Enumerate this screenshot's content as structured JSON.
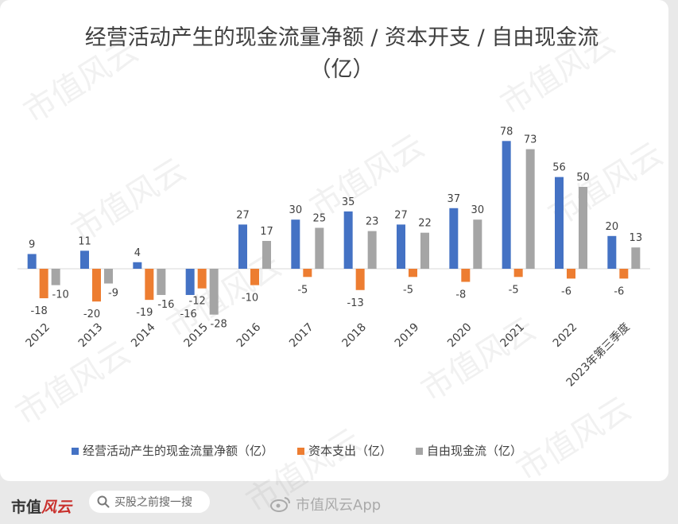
{
  "chart_data": {
    "type": "bar",
    "title": "经营活动产生的现金流量净额 / 资本开支 / 自由现金流（亿）",
    "categories": [
      "2012",
      "2013",
      "2014",
      "2015",
      "2016",
      "2017",
      "2018",
      "2019",
      "2020",
      "2021",
      "2022",
      "2023年第三季度"
    ],
    "series": [
      {
        "name": "经营活动产生的现金流量净额（亿）",
        "color": "#4472c4",
        "values": [
          9,
          11,
          4,
          -16,
          27,
          30,
          35,
          27,
          37,
          78,
          56,
          20
        ]
      },
      {
        "name": "资本支出（亿）",
        "color": "#ed7d31",
        "values": [
          -18,
          -20,
          -19,
          -12,
          -10,
          -5,
          -13,
          -5,
          -8,
          -5,
          -6,
          -6
        ]
      },
      {
        "name": "自由现金流（亿）",
        "color": "#a5a5a5",
        "values": [
          -10,
          -9,
          -16,
          -28,
          17,
          25,
          23,
          22,
          30,
          73,
          50,
          13
        ]
      }
    ],
    "ylim": [
      -36,
      90
    ],
    "grid": false,
    "legend_position": "bottom"
  },
  "watermark": "市值风云",
  "footer": {
    "logo_main": "市值",
    "logo_tail": "风云",
    "search_placeholder": "买股之前搜一搜",
    "app_label": "市值风云App"
  }
}
